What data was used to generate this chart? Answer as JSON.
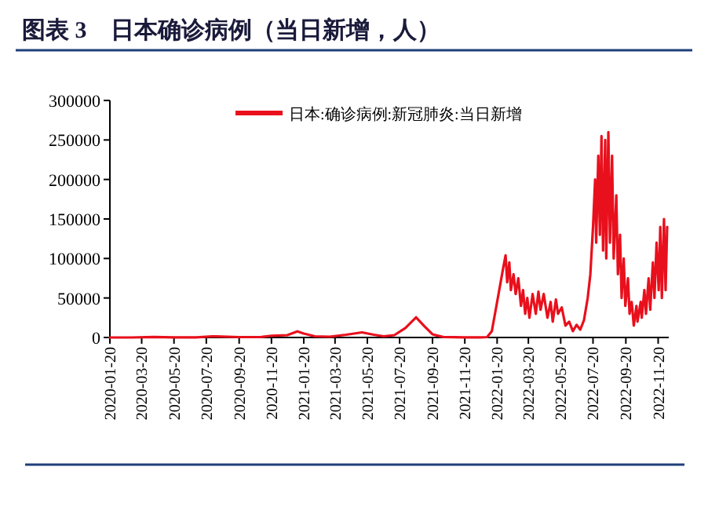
{
  "chart_data": {
    "type": "line",
    "title": "图表 3　日本确诊病例（当日新增，人）",
    "x": [
      "2020-01-20",
      "2020-03-01",
      "2020-04-12",
      "2020-05-20",
      "2020-07-01",
      "2020-07-31",
      "2020-08-07",
      "2020-09-20",
      "2020-11-01",
      "2020-11-20",
      "2020-12-20",
      "2021-01-08",
      "2021-01-20",
      "2021-02-10",
      "2021-03-10",
      "2021-04-10",
      "2021-05-10",
      "2021-06-01",
      "2021-06-20",
      "2021-07-10",
      "2021-07-31",
      "2021-08-20",
      "2021-09-05",
      "2021-09-20",
      "2021-10-10",
      "2021-11-20",
      "2021-12-20",
      "2022-01-01",
      "2022-01-10",
      "2022-01-20",
      "2022-02-01",
      "2022-02-05",
      "2022-02-08",
      "2022-02-12",
      "2022-02-15",
      "2022-02-20",
      "2022-02-24",
      "2022-03-01",
      "2022-03-06",
      "2022-03-10",
      "2022-03-14",
      "2022-03-18",
      "2022-03-22",
      "2022-03-28",
      "2022-04-03",
      "2022-04-08",
      "2022-04-12",
      "2022-04-18",
      "2022-04-25",
      "2022-05-01",
      "2022-05-05",
      "2022-05-11",
      "2022-05-15",
      "2022-05-22",
      "2022-05-29",
      "2022-06-05",
      "2022-06-12",
      "2022-06-19",
      "2022-06-26",
      "2022-07-03",
      "2022-07-10",
      "2022-07-15",
      "2022-07-20",
      "2022-07-24",
      "2022-07-26",
      "2022-07-30",
      "2022-08-02",
      "2022-08-05",
      "2022-08-08",
      "2022-08-12",
      "2022-08-14",
      "2022-08-18",
      "2022-08-21",
      "2022-08-25",
      "2022-08-28",
      "2022-09-02",
      "2022-09-05",
      "2022-09-09",
      "2022-09-12",
      "2022-09-16",
      "2022-09-19",
      "2022-09-24",
      "2022-09-27",
      "2022-10-01",
      "2022-10-05",
      "2022-10-10",
      "2022-10-12",
      "2022-10-18",
      "2022-10-20",
      "2022-10-25",
      "2022-10-28",
      "2022-11-02",
      "2022-11-05",
      "2022-11-10",
      "2022-11-13",
      "2022-11-17",
      "2022-11-21",
      "2022-11-24",
      "2022-11-27",
      "2022-12-01",
      "2022-12-04",
      "2022-12-07"
    ],
    "series": [
      {
        "name": "日本:确诊病例:新冠肺炎:当日新增",
        "color": "#e8101c",
        "values": [
          0,
          20,
          700,
          30,
          100,
          1500,
          1400,
          500,
          700,
          2200,
          3000,
          7800,
          5000,
          1500,
          1000,
          3500,
          6500,
          3500,
          1500,
          3000,
          12000,
          25500,
          14000,
          4000,
          600,
          100,
          200,
          500,
          8000,
          45000,
          90000,
          104000,
          70000,
          95000,
          60000,
          80000,
          55000,
          75000,
          40000,
          60000,
          30000,
          50000,
          25000,
          55000,
          30000,
          58000,
          35000,
          55000,
          25000,
          45000,
          20000,
          48000,
          30000,
          38000,
          15000,
          20000,
          8000,
          16000,
          10000,
          22000,
          50000,
          80000,
          140000,
          200000,
          120000,
          230000,
          130000,
          255000,
          110000,
          250000,
          100000,
          260000,
          120000,
          230000,
          100000,
          180000,
          80000,
          130000,
          50000,
          100000,
          40000,
          75000,
          30000,
          45000,
          15000,
          40000,
          20000,
          45000,
          25000,
          60000,
          30000,
          75000,
          35000,
          95000,
          50000,
          120000,
          60000,
          140000,
          50000,
          150000,
          60000,
          140000
        ]
      }
    ],
    "xlim": [
      "2020-01-20",
      "2022-12-10"
    ],
    "xticks": [
      "2020-01-20",
      "2020-03-20",
      "2020-05-20",
      "2020-07-20",
      "2020-09-20",
      "2020-11-20",
      "2021-01-20",
      "2021-03-20",
      "2021-05-20",
      "2021-07-20",
      "2021-09-20",
      "2021-11-20",
      "2022-01-20",
      "2022-03-20",
      "2022-05-20",
      "2022-07-20",
      "2022-09-20",
      "2022-11-20"
    ],
    "ylim": [
      0,
      300000
    ],
    "yticks": [
      0,
      50000,
      100000,
      150000,
      200000,
      250000,
      300000
    ],
    "legend": "top",
    "grid": false
  }
}
